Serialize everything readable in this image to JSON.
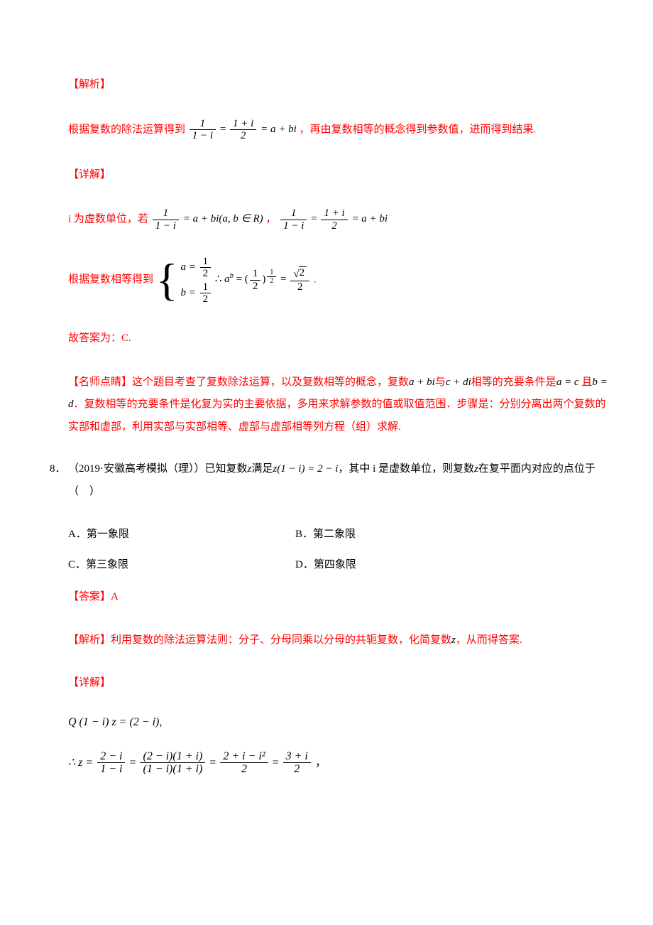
{
  "colors": {
    "red": "#ff0000",
    "black": "#000000",
    "bg": "#ffffff"
  },
  "typography": {
    "body_size_pt": 11,
    "math_family": "Times New Roman",
    "cjk_family": "SimSun"
  },
  "sec1": {
    "hdr_jiexi": "【解析】",
    "p1_a": "根据复数的除法运算得到",
    "p1_eq_lhs_num": "1",
    "p1_eq_lhs_den": "1 − i",
    "p1_eq_mid_num": "1 + i",
    "p1_eq_mid_den": "2",
    "p1_eq_rhs": "= a + bi",
    "p1_b": "，再由复数相等的概念得到参数值，进而得到结果.",
    "hdr_xiangjie": "【详解】",
    "p2_a": "i 为虚数单位，若",
    "p2_eq1_num": "1",
    "p2_eq1_den": "1 − i",
    "p2_eq1_rhs": "= a + bi(a, b ∈ R)",
    "p2_b": "，",
    "p2_eq2_a_num": "1",
    "p2_eq2_a_den": "1 − i",
    "p2_eq2_b_num": "1 + i",
    "p2_eq2_b_den": "2",
    "p2_eq2_rhs": "= a + bi",
    "p3_a": "根据复数相等得到",
    "brace_l1_lhs": "a =",
    "brace_l1_num": "1",
    "brace_l1_den": "2",
    "brace_l2_lhs": "b =",
    "brace_l2_num": "1",
    "brace_l2_den": "2",
    "p3_after": "∴",
    "p3_e1_lhs": "a",
    "p3_e1_sup": "b",
    "p3_e1_eq1_num": "1",
    "p3_e1_eq1_den": "2",
    "p3_e1_pow_num": "1",
    "p3_e1_pow_den": "2",
    "p3_e1_eq2_num_rad": "2",
    "p3_e1_eq2_den": "2",
    "p3_dot": ".",
    "answer_line": "故答案为：C.",
    "tips_label": "【名师点睛】",
    "tips_a": "这个题目考查了复数除法运算，以及复数相等的概念，复数",
    "tips_m1": "a + bi",
    "tips_b": "与",
    "tips_m2": "c + di",
    "tips_c": "相等的充要条件是",
    "tips_m3": "a = c",
    "tips_d": "且",
    "tips_m4": "b = d",
    "tips_e": "．复数相等的充要条件是化复为实的主要依据，多用来求解参数的值或取值范围．步骤是：分别分离出两个复数的实部和虚部，利用实部与实部相等、虚部与虚部相等列方程（组）求解."
  },
  "q8": {
    "num": "8．",
    "src": "（2019·安徽高考模拟（理））",
    "stem_a": "已知复数",
    "stem_m1": "z",
    "stem_b": "满足",
    "stem_m2": "z(1 − i) = 2 − i",
    "stem_c": "，其中 i 是虚数单位，则复数",
    "stem_m3": "z",
    "stem_d": "在复平面内对应的点位于（　）",
    "optA": "A．第一象限",
    "optB": "B．第二象限",
    "optC": "C．第三象限",
    "optD": "D．第四象限",
    "ans_label": "【答案】",
    "ans_val": "A",
    "hdr_jiexi": "【解析】",
    "jiexi_a": "利用复数的除法运算法则：分子、分母同乘以分母的共轭复数，化简复数",
    "jiexi_m1": "z",
    "jiexi_b": "，从而得答案.",
    "hdr_xiangjie": "【详解】",
    "eq1": "Q (1 − i) z = (2 − i),",
    "eq2_pre": "∴ z =",
    "eq2_f1_num": "2 − i",
    "eq2_f1_den": "1 − i",
    "eq2_f2_num": "(2 − i)(1 + i)",
    "eq2_f2_den": "(1 − i)(1 + i)",
    "eq2_f3_num": "2 + i − i²",
    "eq2_f3_den": "2",
    "eq2_f4_num": "3 + i",
    "eq2_f4_den": "2",
    "eq2_tail": "，"
  }
}
